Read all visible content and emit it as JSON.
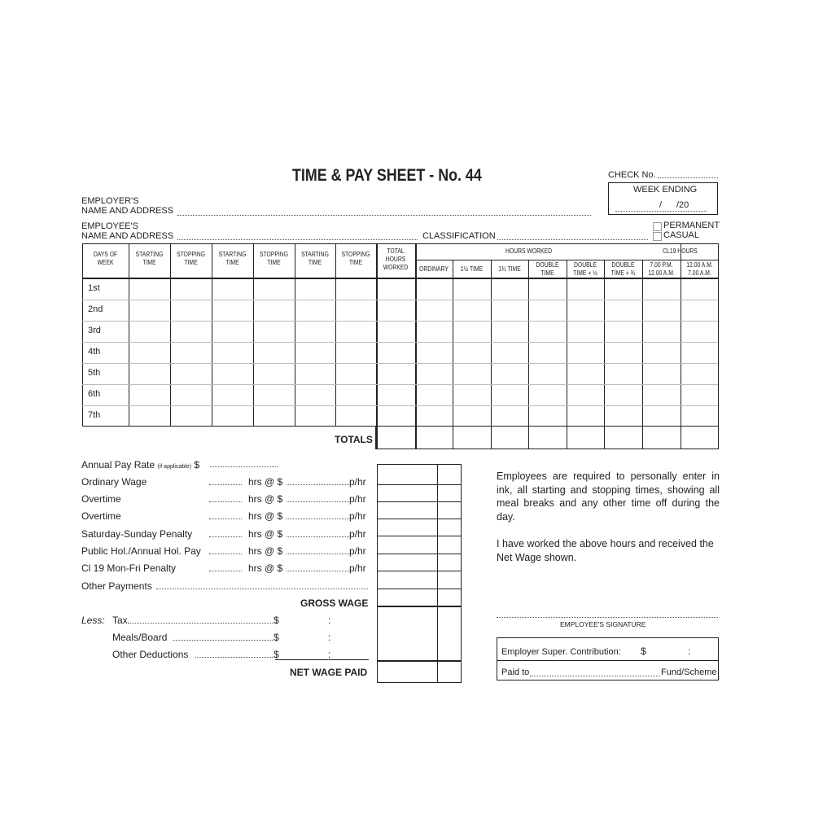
{
  "title": "TIME & PAY SHEET - No. 44",
  "check_no": "CHECK No.",
  "week_ending": {
    "label": "WEEK ENDING",
    "slash": "/",
    "year": "/20"
  },
  "employer": {
    "line1": "EMPLOYER'S",
    "line2": "NAME AND ADDRESS"
  },
  "employee": {
    "line1": "EMPLOYEE'S",
    "line2": "NAME AND ADDRESS"
  },
  "classification": "CLASSIFICATION",
  "employment_type": [
    "PERMANENT",
    "CASUAL"
  ],
  "table": {
    "headers": [
      "DAYS OF WEEK",
      "STARTING TIME",
      "STOPPING TIME",
      "STARTING TIME",
      "STOPPING TIME",
      "STARTING TIME",
      "STOPPING TIME",
      "TOTAL HOURS WORKED"
    ],
    "hours_worked": "HOURS WORKED",
    "hours_cols": [
      "ORDINARY",
      "1½ TIME",
      "1¾ TIME",
      "DOUBLE TIME",
      "DOUBLE TIME + ½",
      "DOUBLE TIME + ¾"
    ],
    "cl19": "CL19 HOURS",
    "cl19_cols": [
      "7.00 P.M. 12.00 A.M.",
      "12.00 A.M. 7.00 A.M."
    ],
    "days": [
      "1st",
      "2nd",
      "3rd",
      "4th",
      "5th",
      "6th",
      "7th"
    ],
    "totals": "TOTALS"
  },
  "pay": {
    "annual": "Annual Pay Rate",
    "annual_note": "(if applicable)",
    "dollar": "$",
    "lines": [
      "Ordinary Wage",
      "Overtime",
      "Overtime",
      "Saturday-Sunday Penalty",
      "Public Hol./Annual Hol. Pay",
      "Cl 19 Mon-Fri Penalty"
    ],
    "hrs": "hrs @ $",
    "phr": "p/hr",
    "other": "Other Payments",
    "gross": "GROSS WAGE",
    "less": "Less:",
    "deductions": [
      "Tax",
      "Meals/Board",
      "Other Deductions"
    ],
    "colon": ":",
    "net": "NET WAGE PAID"
  },
  "notice": "Employees are required to personally enter in ink, all starting and stopping times, showing all meal breaks and any other time off during the day.",
  "declaration": "I have worked the above hours and received the Net Wage shown.",
  "signature": "EMPLOYEE'S SIGNATURE",
  "super": {
    "label": "Employer Super. Contribution:",
    "dollar": "$",
    "colon": ":",
    "paid_to": "Paid to",
    "fund": "Fund/Scheme"
  }
}
